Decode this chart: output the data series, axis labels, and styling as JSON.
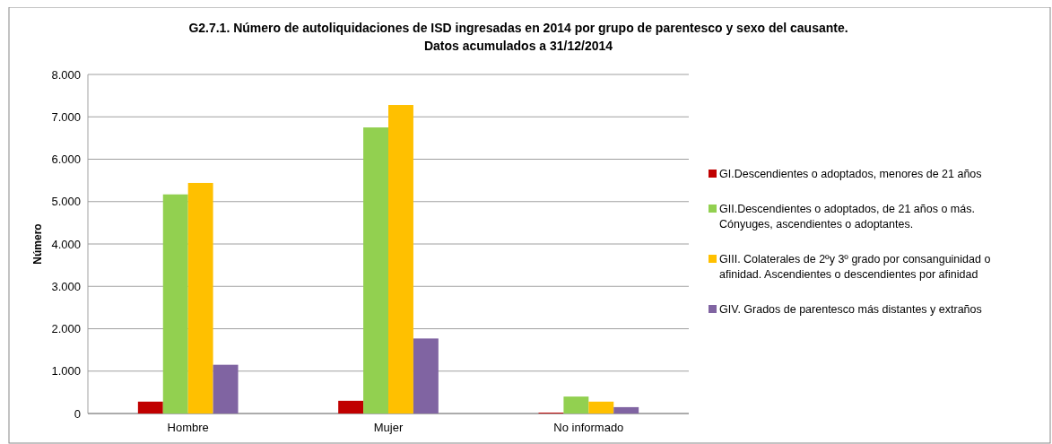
{
  "chart_data": {
    "type": "bar",
    "title": "G2.7.1. Número de autoliquidaciones de ISD ingresadas en 2014 por grupo de parentesco y sexo del causante.\nDatos acumulados a 31/12/2014",
    "ylabel": "Número",
    "categories": [
      "Hombre",
      "Mujer",
      "No informado"
    ],
    "series": [
      {
        "name": "GI.Descendientes o adoptados, menores de 21 años",
        "color": "#c00000",
        "values": [
          280,
          300,
          20
        ]
      },
      {
        "name": "GII.Descendientes o adoptados, de 21 años o más. Cónyuges, ascendientes o adoptantes.",
        "color": "#92d050",
        "values": [
          5170,
          6750,
          400
        ]
      },
      {
        "name": "GIII. Colaterales de 2ºy 3º grado por consanguinidad o afinidad. Ascendientes o descendientes por afinidad",
        "color": "#ffc000",
        "values": [
          5440,
          7280,
          280
        ]
      },
      {
        "name": "GIV. Grados de parentesco más distantes y extraños",
        "color": "#8064a2",
        "values": [
          1150,
          1770,
          150
        ]
      }
    ],
    "ylim": [
      0,
      8000
    ],
    "yticks": [
      {
        "value": 0,
        "label": "0"
      },
      {
        "value": 1000,
        "label": "1.000"
      },
      {
        "value": 2000,
        "label": "2.000"
      },
      {
        "value": 3000,
        "label": "3.000"
      },
      {
        "value": 4000,
        "label": "4.000"
      },
      {
        "value": 5000,
        "label": "5.000"
      },
      {
        "value": 6000,
        "label": "6.000"
      },
      {
        "value": 7000,
        "label": "7.000"
      },
      {
        "value": 8000,
        "label": "8.000"
      }
    ],
    "grid": "y",
    "legend": "right"
  }
}
